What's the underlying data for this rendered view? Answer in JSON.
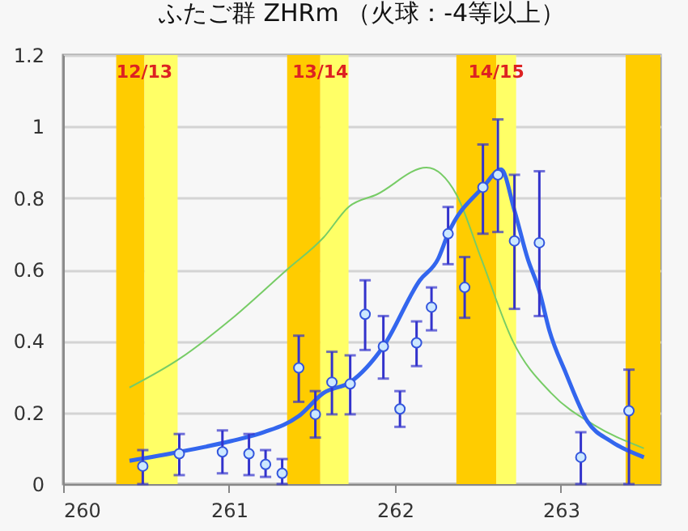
{
  "chart_data": {
    "type": "scatter",
    "title": "ふたご群 ZHRm （火球：-4等以上）",
    "xlim": [
      260,
      263.6
    ],
    "xticks": [
      260,
      261,
      262,
      263
    ],
    "ylim": [
      0,
      1.2
    ],
    "yticks": [
      0,
      0.2,
      0.4,
      0.6,
      0.8,
      1,
      1.2
    ],
    "grid": "y",
    "bands": [
      {
        "axis": "x",
        "from": 260.32,
        "to": 260.49,
        "label": "12/13",
        "color": "#ffcc00"
      },
      {
        "axis": "x",
        "from": 260.49,
        "to": 260.69,
        "label": null,
        "color": "#ffff66"
      },
      {
        "axis": "x",
        "from": 261.35,
        "to": 261.55,
        "label": "13/14",
        "color": "#ffcc00"
      },
      {
        "axis": "x",
        "from": 261.55,
        "to": 261.72,
        "label": null,
        "color": "#ffff66"
      },
      {
        "axis": "x",
        "from": 262.37,
        "to": 262.61,
        "label": "14/15",
        "color": "#ffcc00"
      },
      {
        "axis": "x",
        "from": 262.61,
        "to": 262.73,
        "label": null,
        "color": "#ffff66"
      },
      {
        "axis": "x",
        "from": 263.39,
        "to": 263.6,
        "label": null,
        "color": "#ffcc00"
      }
    ],
    "series": [
      {
        "type": "line",
        "color": "#77cc66",
        "x": [
          260.4,
          260.7,
          261.01,
          261.35,
          261.57,
          261.72,
          261.89,
          262.19,
          262.37,
          262.52,
          262.71,
          262.94,
          263.2,
          263.5
        ],
        "values": [
          0.27,
          0.35,
          0.46,
          0.6,
          0.69,
          0.775,
          0.81,
          0.885,
          0.81,
          0.63,
          0.4,
          0.255,
          0.165,
          0.1
        ]
      },
      {
        "type": "line",
        "color": "#3366ee",
        "x": [
          260.4,
          260.7,
          261.01,
          261.21,
          261.42,
          261.57,
          261.73,
          261.93,
          262.15,
          262.26,
          262.32,
          262.53,
          262.64,
          262.72,
          262.8,
          262.87,
          262.93,
          263.03,
          263.16,
          263.3,
          263.5
        ],
        "values": [
          0.065,
          0.09,
          0.12,
          0.145,
          0.19,
          0.255,
          0.285,
          0.385,
          0.57,
          0.63,
          0.7,
          0.83,
          0.88,
          0.765,
          0.63,
          0.54,
          0.43,
          0.31,
          0.175,
          0.12,
          0.075
        ]
      },
      {
        "color": "#cce8ff",
        "marker": "circle",
        "x": [
          260.48,
          260.7,
          260.96,
          261.12,
          261.22,
          261.32,
          261.42,
          261.52,
          261.62,
          261.73,
          261.82,
          261.93,
          262.03,
          262.13,
          262.22,
          262.32,
          262.42,
          262.53,
          262.62,
          262.72,
          262.87,
          263.12,
          263.41
        ],
        "values": [
          0.05,
          0.085,
          0.09,
          0.085,
          0.055,
          0.03,
          0.325,
          0.195,
          0.285,
          0.28,
          0.475,
          0.385,
          0.21,
          0.395,
          0.495,
          0.7,
          0.55,
          0.83,
          0.865,
          0.68,
          0.675,
          0.075,
          0.205
        ],
        "errors": [
          [
            0,
            0.095
          ],
          [
            0.025,
            0.14
          ],
          [
            0.03,
            0.15
          ],
          [
            0.025,
            0.14
          ],
          [
            0.02,
            0.095
          ],
          [
            0,
            0.07
          ],
          [
            0.23,
            0.415
          ],
          [
            0.13,
            0.26
          ],
          [
            0.195,
            0.37
          ],
          [
            0.195,
            0.36
          ],
          [
            0.375,
            0.57
          ],
          [
            0.295,
            0.47
          ],
          [
            0.16,
            0.26
          ],
          [
            0.33,
            0.455
          ],
          [
            0.43,
            0.55
          ],
          [
            0.615,
            0.775
          ],
          [
            0.465,
            0.635
          ],
          [
            0.7,
            0.95
          ],
          [
            0.705,
            1.02
          ],
          [
            0.49,
            0.865
          ],
          [
            0.47,
            0.875
          ],
          [
            0,
            0.145
          ],
          [
            0,
            0.32
          ]
        ]
      }
    ]
  }
}
